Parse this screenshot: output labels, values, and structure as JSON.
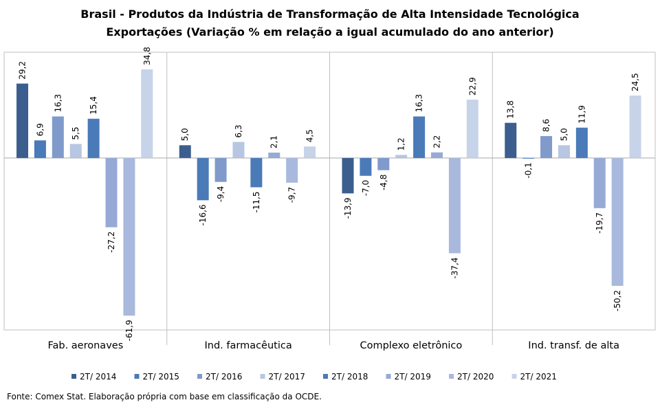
{
  "chart_data": {
    "type": "bar",
    "title": "Brasil - Produtos da Indústria de Transformação de Alta Intensidade Tecnológica",
    "subtitle": "Exportações (Variação % em relação a igual acumulado do ano anterior)",
    "categories": [
      "Fab. aeronaves",
      "Ind. farmacêutica",
      "Complexo eletrônico",
      "Ind. transf. de alta"
    ],
    "series": [
      {
        "name": "2T/ 2014",
        "color": "#3B5E8F",
        "values": [
          29.2,
          5.0,
          -13.9,
          13.8
        ]
      },
      {
        "name": "2T/ 2015",
        "color": "#4A7AB8",
        "values": [
          6.9,
          -16.6,
          -7.0,
          -0.1
        ]
      },
      {
        "name": "2T/ 2016",
        "color": "#7F9ACB",
        "values": [
          16.3,
          -9.4,
          -4.8,
          8.6
        ]
      },
      {
        "name": "2T/ 2017",
        "color": "#B7C6E2",
        "values": [
          5.5,
          6.3,
          1.2,
          5.0
        ]
      },
      {
        "name": "2T/ 2018",
        "color": "#4A7AB8",
        "values": [
          15.4,
          -11.5,
          16.3,
          11.9
        ]
      },
      {
        "name": "2T/ 2019",
        "color": "#97AAD6",
        "values": [
          -27.2,
          2.1,
          2.2,
          -19.7
        ]
      },
      {
        "name": "2T/ 2020",
        "color": "#A9B9DD",
        "values": [
          -61.9,
          -9.7,
          -37.4,
          -50.2
        ]
      },
      {
        "name": "2T/ 2021",
        "color": "#C7D3E9",
        "values": [
          34.8,
          4.5,
          22.9,
          24.5
        ]
      }
    ],
    "labels": [
      [
        "29,2",
        "6,9",
        "16,3",
        "5,5",
        "15,4",
        "-27,2",
        "-61,9",
        "34,8"
      ],
      [
        "5,0",
        "-16,6",
        "-9,4",
        "6,3",
        "-11,5",
        "2,1",
        "-9,7",
        "4,5"
      ],
      [
        "-13,9",
        "-7,0",
        "-4,8",
        "1,2",
        "16,3",
        "2,2",
        "-37,4",
        "22,9"
      ],
      [
        "13,8",
        "-0,1",
        "8,6",
        "5,0",
        "11,9",
        "-19,7",
        "-50,2",
        "24,5"
      ]
    ],
    "ylim": [
      -67.5,
      41.5
    ],
    "legend_position": "bottom",
    "grid": false
  },
  "source": "Fonte: Comex Stat. Elaboração própria com base em classificação da OCDE."
}
